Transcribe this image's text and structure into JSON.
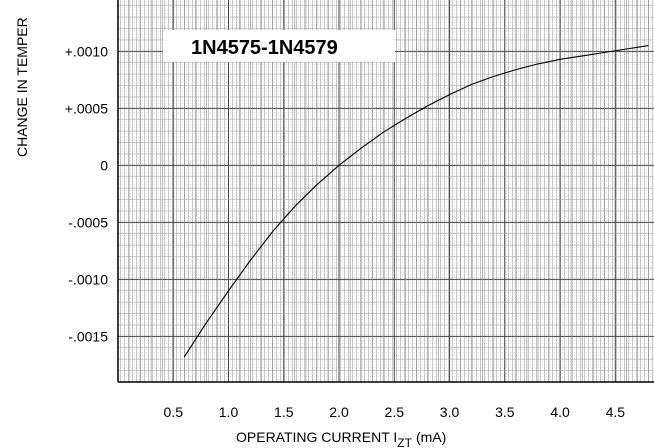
{
  "chart_data": {
    "type": "line",
    "title": "1N4575-1N4579",
    "xlabel": "OPERATING CURRENT I",
    "xlabel_subscript": "ZT",
    "xlabel_unit": "(mA)",
    "ylabel": "CHANGE IN TEMPER",
    "xlim": [
      0.0,
      4.85
    ],
    "ylim": [
      -0.0019,
      0.00145
    ],
    "x_ticks": [
      0.5,
      1.0,
      1.5,
      2.0,
      2.5,
      3.0,
      3.5,
      4.0,
      4.5
    ],
    "x_tick_labels": [
      "0.5",
      "1.0",
      "1.5",
      "2.0",
      "2.5",
      "3.0",
      "3.5",
      "4.0",
      "4.5"
    ],
    "y_ticks": [
      0.001,
      0.0005,
      0.0,
      -0.0005,
      -0.001,
      -0.0015
    ],
    "y_tick_labels": [
      "+.0010",
      "+.0005",
      "0",
      "-.0005",
      "-.0010",
      "-.0015"
    ],
    "grid": true,
    "series": [
      {
        "x": [
          0.6,
          0.8,
          1.0,
          1.2,
          1.4,
          1.6,
          1.8,
          2.0,
          2.2,
          2.4,
          2.6,
          2.8,
          3.0,
          3.2,
          3.4,
          3.6,
          3.8,
          4.0,
          4.2,
          4.4,
          4.6,
          4.8
        ],
        "y": [
          -0.00168,
          -0.00138,
          -0.0011,
          -0.00083,
          -0.00058,
          -0.00036,
          -0.00017,
          0.0,
          0.00015,
          0.00029,
          0.00041,
          0.00052,
          0.00062,
          0.00071,
          0.00078,
          0.00084,
          0.00089,
          0.00093,
          0.00096,
          0.00099,
          0.00102,
          0.00105
        ]
      }
    ]
  }
}
